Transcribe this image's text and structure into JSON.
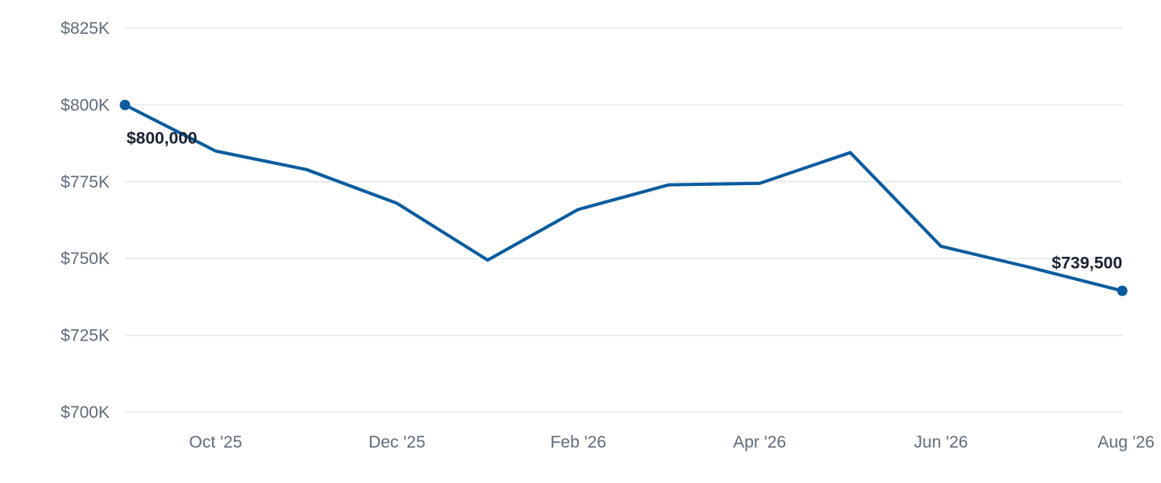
{
  "chart_data": {
    "type": "line",
    "x": [
      "2025-09",
      "2025-10",
      "2025-11",
      "2025-12",
      "2026-01",
      "2026-02",
      "2026-03",
      "2026-04",
      "2026-05",
      "2026-06",
      "2026-07",
      "2026-08"
    ],
    "series": [
      {
        "values": [
          800000,
          785000,
          779000,
          768000,
          749500,
          766000,
          774000,
          774500,
          784500,
          754000,
          747000,
          739500
        ]
      }
    ],
    "ylim": [
      700000,
      825000
    ],
    "y_ticks": [
      "$700K",
      "$725K",
      "$750K",
      "$775K",
      "$800K",
      "$825K"
    ],
    "x_ticks": [
      {
        "index": 1,
        "label": "Oct '25"
      },
      {
        "index": 3,
        "label": "Dec '25"
      },
      {
        "index": 5,
        "label": "Feb '26"
      },
      {
        "index": 7,
        "label": "Apr '26"
      },
      {
        "index": 9,
        "label": "Jun '26"
      },
      {
        "index": 11,
        "label": "Aug '26"
      }
    ],
    "data_labels": [
      {
        "index": 0,
        "text": "$800,000"
      },
      {
        "index": 11,
        "text": "$739,500"
      }
    ],
    "grid": true,
    "colors": {
      "line": "#0b5c9e",
      "grid": "#e3e6ec",
      "tick": "#5f6b7a",
      "label": "#1a2230"
    }
  }
}
